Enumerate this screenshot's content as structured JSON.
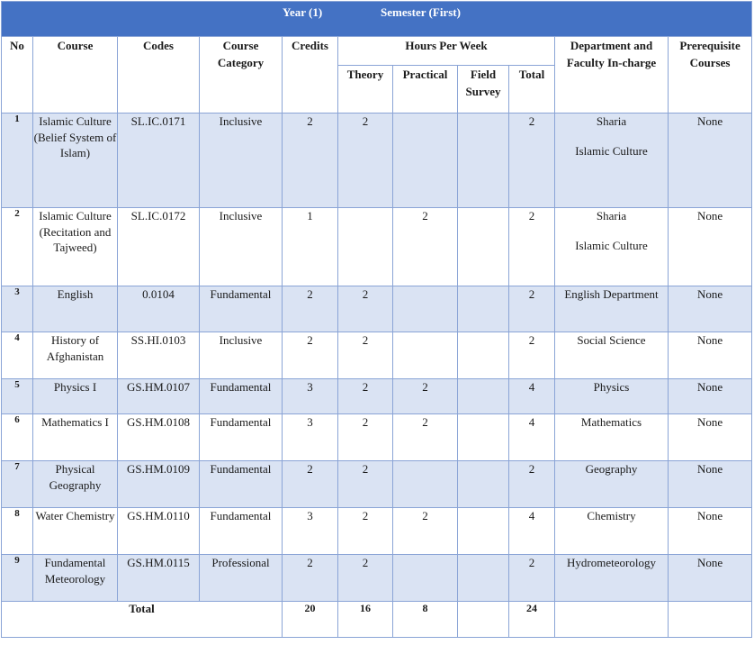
{
  "banner": {
    "year": "Year (1)",
    "semester": "Semester  (First)"
  },
  "headers": {
    "no": "No",
    "course": "Course",
    "codes": "Codes",
    "category": "Course Category",
    "credits": "Credits",
    "hours": "Hours Per Week",
    "theory": "Theory",
    "practical": "Practical",
    "field": "Field Survey",
    "total": "Total",
    "department": "Department and Faculty In-charge",
    "prereq": "Prerequisite Courses"
  },
  "rows": [
    {
      "no": "1",
      "course": "Islamic Culture (Belief System of Islam)",
      "code": "SL.IC.0171",
      "category": "Inclusive",
      "credits": "2",
      "theory": "2",
      "practical": "",
      "field": "",
      "total": "2",
      "dept": "Sharia",
      "dept2": "Islamic Culture",
      "prereq": "None"
    },
    {
      "no": "2",
      "course": "Islamic Culture (Recitation and Tajweed)",
      "code": "SL.IC.0172",
      "category": "Inclusive",
      "credits": "1",
      "theory": "",
      "practical": "2",
      "field": "",
      "total": "2",
      "dept": "Sharia",
      "dept2": "Islamic Culture",
      "prereq": "None"
    },
    {
      "no": "3",
      "course": "English",
      "code": "0.0104",
      "category": "Fundamental",
      "credits": "2",
      "theory": "2",
      "practical": "",
      "field": "",
      "total": "2",
      "dept": "English Department",
      "dept2": "",
      "prereq": "None"
    },
    {
      "no": "4",
      "course": "History of Afghanistan",
      "code": "SS.HI.0103",
      "category": "Inclusive",
      "credits": "2",
      "theory": "2",
      "practical": "",
      "field": "",
      "total": "2",
      "dept": "Social Science",
      "dept2": "",
      "prereq": "None"
    },
    {
      "no": "5",
      "course": "Physics I",
      "code": "GS.HM.0107",
      "category": "Fundamental",
      "credits": "3",
      "theory": "2",
      "practical": "2",
      "field": "",
      "total": "4",
      "dept": "Physics",
      "dept2": "",
      "prereq": "None"
    },
    {
      "no": "6",
      "course": "Mathematics I",
      "code": "GS.HM.0108",
      "category": "Fundamental",
      "credits": "3",
      "theory": "2",
      "practical": "2",
      "field": "",
      "total": "4",
      "dept": "Mathematics",
      "dept2": "",
      "prereq": "None"
    },
    {
      "no": "7",
      "course": "Physical Geography",
      "code": "GS.HM.0109",
      "category": "Fundamental",
      "credits": "2",
      "theory": "2",
      "practical": "",
      "field": "",
      "total": "2",
      "dept": "Geography",
      "dept2": "",
      "prereq": "None"
    },
    {
      "no": "8",
      "course": "Water Chemistry",
      "code": "GS.HM.0110",
      "category": "Fundamental",
      "credits": "3",
      "theory": "2",
      "practical": "2",
      "field": "",
      "total": "4",
      "dept": "Chemistry",
      "dept2": "",
      "prereq": "None"
    },
    {
      "no": "9",
      "course": "Fundamental Meteorology",
      "code": "GS.HM.0115",
      "category": "Professional",
      "credits": "2",
      "theory": "2",
      "practical": "",
      "field": "",
      "total": "2",
      "dept": "Hydrometeorology",
      "dept2": "",
      "prereq": "None"
    }
  ],
  "totals": {
    "label": "Total",
    "credits": "20",
    "theory": "16",
    "practical": "8",
    "field": "",
    "total": "24"
  }
}
